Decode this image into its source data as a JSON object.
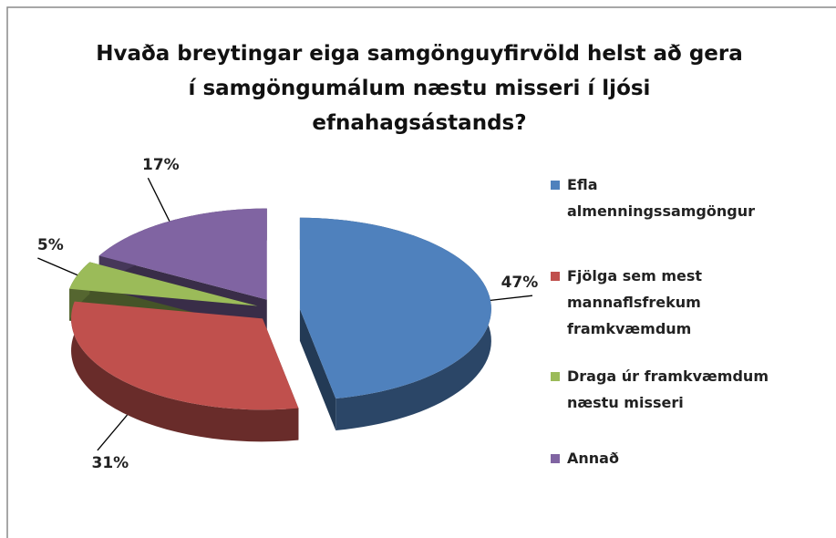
{
  "chart_data": {
    "type": "pie",
    "title": "Hvaða breytingar eiga samgönguyfirvöld helst að gera í samgöngumálum næstu misseri í ljósi efnahagsástands?",
    "categories": [
      "Efla almenningssamgöngur",
      "Fjölga sem mest mannaflsfrekum framkvæmdum",
      "Draga úr framkvæmdum næstu misseri",
      "Annað"
    ],
    "values": [
      47,
      31,
      5,
      17
    ],
    "value_labels": [
      "47%",
      "31%",
      "5%",
      "17%"
    ],
    "colors": [
      "#4f81bd",
      "#c0504d",
      "#9bbb59",
      "#8064a2"
    ],
    "legend": "right"
  }
}
